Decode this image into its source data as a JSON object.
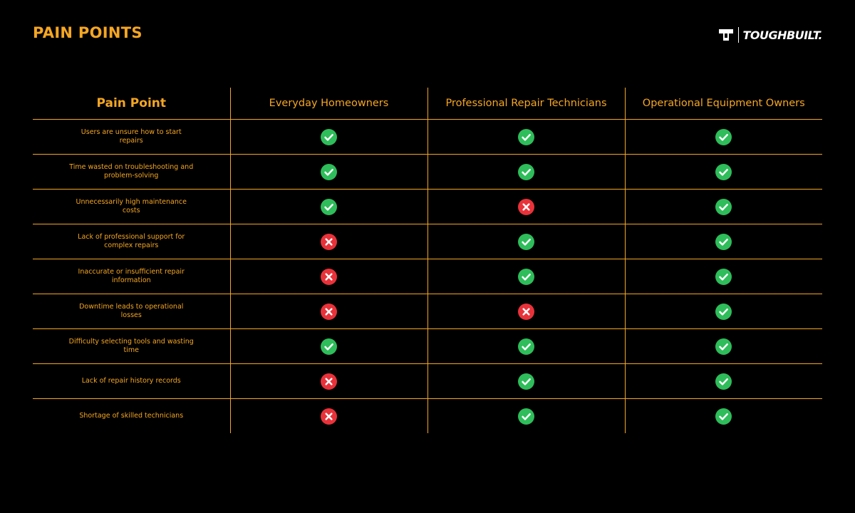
{
  "header": {
    "title": "PAIN POINTS"
  },
  "brand": {
    "name": "TOUGHBUILT.",
    "icon": "toughbuilt-logo-icon"
  },
  "colors": {
    "accent": "#f5a623",
    "check": "#2ebd5a",
    "cross": "#e8323a",
    "background": "#000000"
  },
  "table": {
    "columns": [
      "Pain Point",
      "Everyday Homeowners",
      "Professional Repair Technicians",
      "Operational Equipment Owners"
    ],
    "rows": [
      {
        "label": "Users are unsure how to start repairs",
        "values": [
          "check",
          "check",
          "check"
        ]
      },
      {
        "label": "Time wasted on troubleshooting and problem-solving",
        "values": [
          "check",
          "check",
          "check"
        ]
      },
      {
        "label": "Unnecessarily high maintenance costs",
        "values": [
          "check",
          "cross",
          "check"
        ]
      },
      {
        "label": "Lack of professional support for complex repairs",
        "values": [
          "cross",
          "check",
          "check"
        ]
      },
      {
        "label": "Inaccurate or insufficient repair information",
        "values": [
          "cross",
          "check",
          "check"
        ]
      },
      {
        "label": "Downtime leads to operational losses",
        "values": [
          "cross",
          "cross",
          "check"
        ]
      },
      {
        "label": "Difficulty selecting tools and wasting time",
        "values": [
          "check",
          "check",
          "check"
        ]
      },
      {
        "label": "Lack of repair history records",
        "values": [
          "cross",
          "check",
          "check"
        ]
      },
      {
        "label": "Shortage of skilled technicians",
        "values": [
          "cross",
          "check",
          "check"
        ]
      }
    ]
  }
}
